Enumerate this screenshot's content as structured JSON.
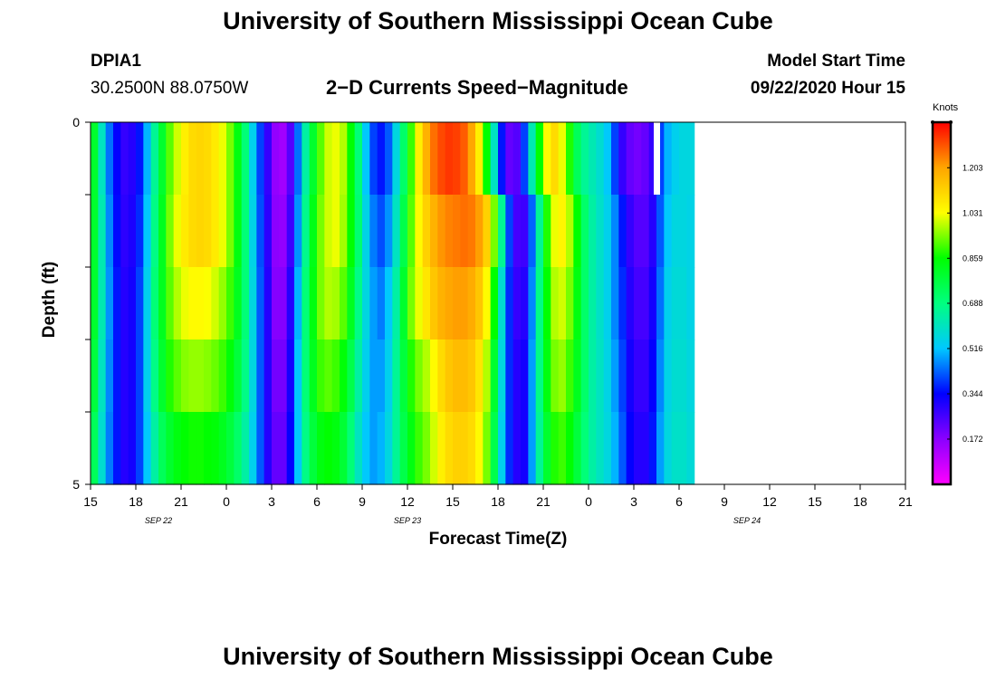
{
  "page": {
    "title": "University of Southern Mississippi Ocean Cube",
    "footer_title": "University of Southern Mississippi Ocean Cube",
    "station_id": "DPIA1",
    "station_coords": "30.2500N 88.0750W",
    "model_start_label": "Model Start Time",
    "model_start_value": "09/22/2020 Hour 15"
  },
  "chart_data": {
    "type": "heatmap",
    "title": "2−D Currents Speed−Magnitude",
    "xlabel": "Forecast Time(Z)",
    "ylabel": "Depth (ft)",
    "colorbar_title": "Knots",
    "x_tick_labels": [
      "15",
      "18",
      "21",
      "0",
      "3",
      "6",
      "9",
      "12",
      "15",
      "18",
      "21",
      "0",
      "3",
      "6",
      "9",
      "12",
      "15",
      "18",
      "21"
    ],
    "x_range_hours": [
      0,
      54
    ],
    "y_tick_labels": [
      "0",
      "5"
    ],
    "y_range_ft": [
      0,
      5
    ],
    "date_labels": [
      {
        "text": "SEP  22",
        "hour": 4.5
      },
      {
        "text": "SEP  23",
        "hour": 21
      },
      {
        "text": "SEP  24",
        "hour": 43.5
      }
    ],
    "colorbar_ticks": [
      "0.172",
      "0.344",
      "0.516",
      "0.688",
      "0.859",
      "1.031",
      "1.203"
    ],
    "colorbar_ticks_values": [
      0.172,
      0.344,
      0.516,
      0.688,
      0.859,
      1.031,
      1.203
    ],
    "color_range": [
      0.0,
      1.376
    ],
    "colors": {
      "stops": [
        "#ff00ff",
        "#8b00ff",
        "#0000ff",
        "#00c8ff",
        "#00ff80",
        "#00ff00",
        "#ffff00",
        "#ffa500",
        "#ff0000"
      ],
      "border": "#000000",
      "gap": "#ffffff"
    },
    "depth_bins": 5,
    "time_hours_per_col": 0.5,
    "missing_cell": {
      "hour": 37.5,
      "depth_bin": 0
    },
    "speeds_knots": [
      [
        0.8,
        0.6,
        0.44,
        0.34,
        0.28,
        0.3,
        0.36,
        0.5,
        0.66,
        0.8,
        0.92,
        1.0,
        1.06,
        1.1,
        1.11,
        1.1,
        1.07,
        1.02,
        0.94,
        0.84,
        0.7,
        0.54,
        0.4,
        0.28,
        0.16,
        0.14,
        0.24,
        0.44,
        0.64,
        0.8,
        0.92,
        1.0,
        1.02,
        0.98,
        0.86,
        0.7,
        0.52,
        0.4,
        0.36,
        0.42,
        0.56,
        0.72,
        0.9,
        1.06,
        1.18,
        1.26,
        1.3,
        1.32,
        1.31,
        1.28,
        1.2,
        1.06,
        0.86,
        0.6,
        0.36,
        0.22,
        0.24,
        0.4,
        0.62,
        0.86,
        1.04,
        1.1,
        1.02,
        0.88,
        0.74,
        0.66,
        0.62,
        0.58,
        0.52,
        0.4,
        0.28,
        0.22,
        0.2,
        0.22,
        0.28,
        0.4,
        0.5,
        0.54,
        0.56,
        0.56
      ],
      [
        0.8,
        0.62,
        0.46,
        0.35,
        0.29,
        0.31,
        0.38,
        0.52,
        0.68,
        0.82,
        0.94,
        1.02,
        1.07,
        1.1,
        1.11,
        1.1,
        1.07,
        1.02,
        0.94,
        0.84,
        0.7,
        0.55,
        0.41,
        0.29,
        0.17,
        0.16,
        0.27,
        0.47,
        0.67,
        0.83,
        0.94,
        1.0,
        1.02,
        0.97,
        0.86,
        0.71,
        0.55,
        0.45,
        0.41,
        0.47,
        0.6,
        0.76,
        0.92,
        1.04,
        1.12,
        1.18,
        1.22,
        1.24,
        1.25,
        1.26,
        1.25,
        1.21,
        1.12,
        0.94,
        0.66,
        0.4,
        0.26,
        0.27,
        0.43,
        0.66,
        0.88,
        1.02,
        1.05,
        0.98,
        0.86,
        0.72,
        0.64,
        0.59,
        0.54,
        0.46,
        0.36,
        0.28,
        0.24,
        0.24,
        0.3,
        0.42,
        0.52,
        0.56,
        0.56,
        0.55
      ],
      [
        0.8,
        0.62,
        0.47,
        0.36,
        0.3,
        0.32,
        0.4,
        0.54,
        0.7,
        0.82,
        0.92,
        0.98,
        1.02,
        1.04,
        1.04,
        1.03,
        1.0,
        0.96,
        0.9,
        0.82,
        0.7,
        0.56,
        0.42,
        0.3,
        0.18,
        0.18,
        0.3,
        0.5,
        0.7,
        0.84,
        0.94,
        0.98,
        0.97,
        0.92,
        0.82,
        0.68,
        0.56,
        0.48,
        0.45,
        0.52,
        0.64,
        0.8,
        0.94,
        1.02,
        1.08,
        1.14,
        1.18,
        1.2,
        1.21,
        1.21,
        1.19,
        1.14,
        1.04,
        0.86,
        0.58,
        0.38,
        0.28,
        0.3,
        0.46,
        0.68,
        0.86,
        0.98,
        1.0,
        0.94,
        0.84,
        0.72,
        0.64,
        0.59,
        0.54,
        0.46,
        0.38,
        0.3,
        0.26,
        0.26,
        0.32,
        0.44,
        0.54,
        0.57,
        0.57,
        0.55
      ],
      [
        0.78,
        0.6,
        0.46,
        0.36,
        0.3,
        0.32,
        0.4,
        0.54,
        0.68,
        0.8,
        0.88,
        0.92,
        0.95,
        0.96,
        0.96,
        0.95,
        0.93,
        0.9,
        0.85,
        0.78,
        0.68,
        0.56,
        0.42,
        0.3,
        0.2,
        0.2,
        0.32,
        0.52,
        0.7,
        0.82,
        0.9,
        0.92,
        0.9,
        0.85,
        0.76,
        0.64,
        0.54,
        0.48,
        0.48,
        0.54,
        0.66,
        0.78,
        0.88,
        0.94,
        0.98,
        1.04,
        1.1,
        1.14,
        1.16,
        1.16,
        1.14,
        1.08,
        0.98,
        0.8,
        0.56,
        0.38,
        0.3,
        0.32,
        0.48,
        0.68,
        0.84,
        0.94,
        0.96,
        0.9,
        0.82,
        0.72,
        0.64,
        0.6,
        0.55,
        0.48,
        0.4,
        0.32,
        0.28,
        0.28,
        0.34,
        0.46,
        0.55,
        0.58,
        0.58,
        0.56
      ],
      [
        0.74,
        0.58,
        0.45,
        0.36,
        0.3,
        0.32,
        0.4,
        0.52,
        0.64,
        0.74,
        0.8,
        0.84,
        0.86,
        0.87,
        0.87,
        0.86,
        0.85,
        0.82,
        0.78,
        0.72,
        0.64,
        0.54,
        0.42,
        0.3,
        0.22,
        0.22,
        0.34,
        0.52,
        0.68,
        0.78,
        0.84,
        0.86,
        0.84,
        0.79,
        0.7,
        0.6,
        0.52,
        0.48,
        0.5,
        0.56,
        0.66,
        0.76,
        0.84,
        0.9,
        0.94,
        1.0,
        1.06,
        1.1,
        1.12,
        1.12,
        1.1,
        1.04,
        0.94,
        0.76,
        0.54,
        0.38,
        0.3,
        0.32,
        0.48,
        0.66,
        0.8,
        0.88,
        0.9,
        0.86,
        0.78,
        0.7,
        0.64,
        0.6,
        0.56,
        0.5,
        0.42,
        0.34,
        0.3,
        0.3,
        0.36,
        0.48,
        0.56,
        0.59,
        0.59,
        0.57
      ]
    ]
  }
}
